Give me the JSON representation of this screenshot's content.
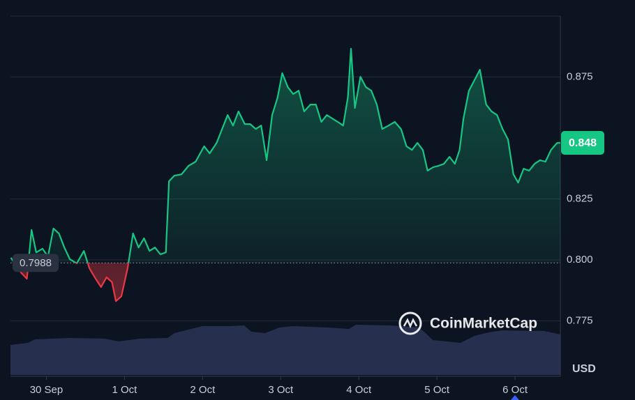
{
  "chart_data": {
    "type": "line",
    "currency": "USD",
    "watermark": "CoinMarketCap",
    "baseline": 0.7988,
    "current_price": 0.848,
    "xlim": [
      -0.46,
      6.58
    ],
    "ylim": [
      0.7523,
      0.9
    ],
    "xticks": [
      {
        "value": 0,
        "label": "30 Sep"
      },
      {
        "value": 1,
        "label": "1 Oct"
      },
      {
        "value": 2,
        "label": "2 Oct"
      },
      {
        "value": 3,
        "label": "3 Oct"
      },
      {
        "value": 4,
        "label": "4 Oct"
      },
      {
        "value": 5,
        "label": "5 Oct"
      },
      {
        "value": 6,
        "label": "6 Oct"
      }
    ],
    "yticks": [
      0.775,
      {
        "value": 0.8,
        "label": "0.800"
      },
      0.825,
      0.875
    ],
    "grid": true,
    "series": [
      {
        "name": "Price",
        "color": "#16c784",
        "below_color": "#ea3943",
        "x": [
          -0.455,
          -0.39,
          -0.32,
          -0.25,
          -0.19,
          -0.13,
          -0.05,
          0.02,
          0.09,
          0.16,
          0.23,
          0.3,
          0.39,
          0.48,
          0.55,
          0.63,
          0.7,
          0.77,
          0.84,
          0.89,
          0.96,
          1.04,
          1.11,
          1.18,
          1.25,
          1.32,
          1.39,
          1.46,
          1.53,
          1.57,
          1.64,
          1.73,
          1.82,
          1.91,
          2.02,
          2.09,
          2.18,
          2.25,
          2.32,
          2.39,
          2.46,
          2.54,
          2.61,
          2.68,
          2.75,
          2.82,
          2.89,
          2.96,
          3.02,
          3.09,
          3.16,
          3.23,
          3.3,
          3.38,
          3.45,
          3.52,
          3.59,
          3.66,
          3.73,
          3.8,
          3.86,
          3.9,
          3.95,
          4.02,
          4.09,
          4.16,
          4.23,
          4.3,
          4.38,
          4.46,
          4.54,
          4.61,
          4.68,
          4.75,
          4.82,
          4.88,
          4.95,
          5.02,
          5.09,
          5.16,
          5.23,
          5.29,
          5.34,
          5.41,
          5.48,
          5.55,
          5.63,
          5.7,
          5.77,
          5.84,
          5.91,
          5.98,
          6.04,
          6.11,
          6.18,
          6.25,
          6.32,
          6.39,
          6.46,
          6.54,
          6.58
        ],
        "values": [
          0.8009,
          0.798,
          0.7946,
          0.7923,
          0.8123,
          0.8031,
          0.8046,
          0.8014,
          0.8129,
          0.8109,
          0.8051,
          0.8003,
          0.7986,
          0.8037,
          0.7966,
          0.7923,
          0.7889,
          0.7929,
          0.7909,
          0.7831,
          0.7851,
          0.7966,
          0.8109,
          0.8051,
          0.8089,
          0.8037,
          0.8051,
          0.8023,
          0.8031,
          0.8323,
          0.8346,
          0.8351,
          0.8386,
          0.8403,
          0.8466,
          0.8437,
          0.848,
          0.8537,
          0.8594,
          0.8551,
          0.8609,
          0.8557,
          0.8557,
          0.8537,
          0.8551,
          0.8409,
          0.8594,
          0.8666,
          0.8766,
          0.8709,
          0.868,
          0.8694,
          0.8609,
          0.8637,
          0.8637,
          0.8566,
          0.8594,
          0.858,
          0.8566,
          0.8551,
          0.8666,
          0.8866,
          0.8623,
          0.8751,
          0.8709,
          0.8694,
          0.8637,
          0.8537,
          0.8551,
          0.8566,
          0.8537,
          0.8466,
          0.8451,
          0.848,
          0.8451,
          0.8366,
          0.838,
          0.8386,
          0.8394,
          0.8423,
          0.8394,
          0.8451,
          0.858,
          0.8694,
          0.8737,
          0.878,
          0.8637,
          0.8609,
          0.8594,
          0.8537,
          0.8494,
          0.8351,
          0.8317,
          0.8374,
          0.8366,
          0.8394,
          0.8409,
          0.8403,
          0.8451,
          0.848,
          0.848
        ]
      }
    ]
  }
}
